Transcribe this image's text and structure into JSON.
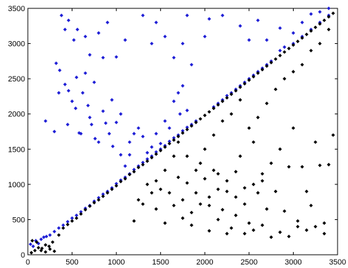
{
  "chart_data": {
    "type": "scatter",
    "title": "",
    "xlabel": "",
    "ylabel": "",
    "xlim": [
      0,
      3500
    ],
    "ylim": [
      0,
      3500
    ],
    "xticks": [
      0,
      500,
      1000,
      1500,
      2000,
      2500,
      3000,
      3500
    ],
    "yticks": [
      0,
      500,
      1000,
      1500,
      2000,
      2500,
      3000,
      3500
    ],
    "grid": false,
    "colors": {
      "upper": "#1f1fd6",
      "lower": "#000000"
    },
    "series": [
      {
        "color": "#1f1fd6",
        "marker": "diamond",
        "points": [
          [
            30,
            150
          ],
          [
            60,
            120
          ],
          [
            90,
            200
          ],
          [
            120,
            160
          ],
          [
            150,
            220
          ],
          [
            180,
            250
          ],
          [
            210,
            260
          ],
          [
            250,
            280
          ],
          [
            300,
            330
          ],
          [
            350,
            380
          ],
          [
            400,
            420
          ],
          [
            450,
            470
          ],
          [
            500,
            520
          ],
          [
            550,
            560
          ],
          [
            600,
            610
          ],
          [
            650,
            660
          ],
          [
            700,
            700
          ],
          [
            750,
            760
          ],
          [
            800,
            810
          ],
          [
            850,
            860
          ],
          [
            900,
            900
          ],
          [
            950,
            950
          ],
          [
            1000,
            1010
          ],
          [
            1050,
            1060
          ],
          [
            1100,
            1100
          ],
          [
            1150,
            1150
          ],
          [
            1200,
            1210
          ],
          [
            1250,
            1260
          ],
          [
            1300,
            1310
          ],
          [
            1350,
            1360
          ],
          [
            1400,
            1400
          ],
          [
            1450,
            1460
          ],
          [
            1500,
            1500
          ],
          [
            1550,
            1550
          ],
          [
            1600,
            1610
          ],
          [
            1650,
            1660
          ],
          [
            1700,
            1700
          ],
          [
            1750,
            1760
          ],
          [
            1800,
            1810
          ],
          [
            1850,
            1850
          ],
          [
            1900,
            1900
          ],
          [
            2100,
            2100
          ],
          [
            2150,
            2150
          ],
          [
            2200,
            2200
          ],
          [
            2250,
            2260
          ],
          [
            2300,
            2300
          ],
          [
            2350,
            2350
          ],
          [
            2400,
            2400
          ],
          [
            2450,
            2450
          ],
          [
            2500,
            2500
          ],
          [
            2550,
            2550
          ],
          [
            2600,
            2600
          ],
          [
            2650,
            2650
          ],
          [
            2700,
            2700
          ],
          [
            2750,
            2750
          ],
          [
            2850,
            2900
          ],
          [
            2900,
            2950
          ],
          [
            3000,
            3000
          ],
          [
            3100,
            3100
          ],
          [
            3200,
            3200
          ],
          [
            3300,
            3300
          ],
          [
            3400,
            3400
          ],
          [
            320,
            2720
          ],
          [
            360,
            2620
          ],
          [
            420,
            2420
          ],
          [
            460,
            2330
          ],
          [
            500,
            2180
          ],
          [
            540,
            2080
          ],
          [
            580,
            1730
          ],
          [
            600,
            1720
          ],
          [
            620,
            2300
          ],
          [
            680,
            2120
          ],
          [
            700,
            1950
          ],
          [
            720,
            1850
          ],
          [
            760,
            1650
          ],
          [
            800,
            1600
          ],
          [
            850,
            2040
          ],
          [
            880,
            1870
          ],
          [
            920,
            1720
          ],
          [
            960,
            1540
          ],
          [
            1000,
            1880
          ],
          [
            1050,
            1420
          ],
          [
            1100,
            1260
          ],
          [
            1150,
            1420
          ],
          [
            1200,
            1720
          ],
          [
            1250,
            1800
          ],
          [
            1300,
            1680
          ],
          [
            1400,
            1530
          ],
          [
            1450,
            1720
          ],
          [
            1500,
            1580
          ],
          [
            1550,
            1900
          ],
          [
            1600,
            1800
          ],
          [
            1650,
            2180
          ],
          [
            1700,
            2300
          ],
          [
            1720,
            2000
          ],
          [
            1750,
            2400
          ],
          [
            1800,
            2050
          ],
          [
            380,
            3400
          ],
          [
            420,
            3200
          ],
          [
            460,
            3330
          ],
          [
            520,
            3050
          ],
          [
            560,
            3200
          ],
          [
            650,
            3100
          ],
          [
            700,
            2840
          ],
          [
            800,
            3150
          ],
          [
            850,
            2800
          ],
          [
            900,
            3300
          ],
          [
            1000,
            2810
          ],
          [
            1100,
            3050
          ],
          [
            1300,
            3400
          ],
          [
            1400,
            3000
          ],
          [
            1450,
            3300
          ],
          [
            1550,
            3100
          ],
          [
            1650,
            2800
          ],
          [
            1750,
            3000
          ],
          [
            1800,
            3400
          ],
          [
            1850,
            2700
          ],
          [
            2000,
            3100
          ],
          [
            2050,
            3350
          ],
          [
            2200,
            3400
          ],
          [
            2400,
            3250
          ],
          [
            2500,
            3050
          ],
          [
            2600,
            3330
          ],
          [
            2700,
            3050
          ],
          [
            2850,
            3220
          ],
          [
            3000,
            3150
          ],
          [
            3100,
            3300
          ],
          [
            3200,
            3420
          ],
          [
            3300,
            3450
          ],
          [
            3400,
            3500
          ],
          [
            200,
            1900
          ],
          [
            300,
            1750
          ],
          [
            350,
            2300
          ],
          [
            450,
            1850
          ],
          [
            550,
            2520
          ],
          [
            650,
            2580
          ],
          [
            750,
            2450
          ],
          [
            950,
            2200
          ],
          [
            1050,
            2000
          ],
          [
            1150,
            1600
          ],
          [
            1350,
            1450
          ]
        ]
      },
      {
        "color": "#000000",
        "marker": "diamond",
        "points": [
          [
            40,
            30
          ],
          [
            80,
            60
          ],
          [
            120,
            100
          ],
          [
            160,
            90
          ],
          [
            200,
            140
          ],
          [
            240,
            120
          ],
          [
            280,
            180
          ],
          [
            50,
            200
          ],
          [
            100,
            180
          ],
          [
            150,
            60
          ],
          [
            200,
            40
          ],
          [
            250,
            80
          ],
          [
            300,
            50
          ],
          [
            350,
            280
          ],
          [
            400,
            380
          ],
          [
            450,
            430
          ],
          [
            500,
            480
          ],
          [
            550,
            520
          ],
          [
            600,
            580
          ],
          [
            650,
            640
          ],
          [
            700,
            690
          ],
          [
            750,
            740
          ],
          [
            800,
            780
          ],
          [
            850,
            830
          ],
          [
            900,
            880
          ],
          [
            950,
            930
          ],
          [
            1000,
            980
          ],
          [
            1050,
            1040
          ],
          [
            1100,
            1080
          ],
          [
            1150,
            1140
          ],
          [
            1200,
            1180
          ],
          [
            1250,
            1240
          ],
          [
            1300,
            1280
          ],
          [
            1350,
            1330
          ],
          [
            1400,
            1380
          ],
          [
            1450,
            1430
          ],
          [
            1500,
            1480
          ],
          [
            1550,
            1530
          ],
          [
            1600,
            1580
          ],
          [
            1650,
            1630
          ],
          [
            1700,
            1680
          ],
          [
            1750,
            1730
          ],
          [
            1800,
            1780
          ],
          [
            1850,
            1830
          ],
          [
            1900,
            1880
          ],
          [
            1950,
            1930
          ],
          [
            2000,
            1980
          ],
          [
            2050,
            2030
          ],
          [
            2100,
            2080
          ],
          [
            2150,
            2130
          ],
          [
            2200,
            2180
          ],
          [
            2250,
            2230
          ],
          [
            2300,
            2280
          ],
          [
            2350,
            2330
          ],
          [
            2400,
            2380
          ],
          [
            2450,
            2430
          ],
          [
            2500,
            2480
          ],
          [
            2550,
            2530
          ],
          [
            2600,
            2580
          ],
          [
            2650,
            2630
          ],
          [
            2700,
            2680
          ],
          [
            2750,
            2730
          ],
          [
            2800,
            2780
          ],
          [
            2850,
            2830
          ],
          [
            2900,
            2880
          ],
          [
            2950,
            2930
          ],
          [
            3000,
            2980
          ],
          [
            3050,
            3030
          ],
          [
            3100,
            3080
          ],
          [
            3150,
            3130
          ],
          [
            3200,
            3180
          ],
          [
            3250,
            3230
          ],
          [
            3300,
            3280
          ],
          [
            3350,
            3330
          ],
          [
            3400,
            3380
          ],
          [
            3450,
            3430
          ],
          [
            1200,
            480
          ],
          [
            1300,
            720
          ],
          [
            1350,
            1000
          ],
          [
            1400,
            880
          ],
          [
            1450,
            1050
          ],
          [
            1500,
            930
          ],
          [
            1550,
            1200
          ],
          [
            1600,
            880
          ],
          [
            1650,
            1400
          ],
          [
            1700,
            1100
          ],
          [
            1750,
            780
          ],
          [
            1800,
            1020
          ],
          [
            1850,
            600
          ],
          [
            1900,
            880
          ],
          [
            1950,
            1300
          ],
          [
            2000,
            1080
          ],
          [
            2050,
            820
          ],
          [
            2100,
            1200
          ],
          [
            2150,
            500
          ],
          [
            2200,
            640
          ],
          [
            2250,
            900
          ],
          [
            2300,
            380
          ],
          [
            2350,
            560
          ],
          [
            2400,
            1400
          ],
          [
            2450,
            720
          ],
          [
            2500,
            450
          ],
          [
            2550,
            1600
          ],
          [
            2600,
            880
          ],
          [
            2650,
            1050
          ],
          [
            2700,
            650
          ],
          [
            2750,
            1300
          ],
          [
            2800,
            900
          ],
          [
            2850,
            1500
          ],
          [
            2900,
            620
          ],
          [
            2950,
            1250
          ],
          [
            3000,
            1800
          ],
          [
            3050,
            400
          ],
          [
            3100,
            1250
          ],
          [
            3150,
            900
          ],
          [
            3200,
            700
          ],
          [
            3250,
            1600
          ],
          [
            3300,
            1270
          ],
          [
            3350,
            300
          ],
          [
            3400,
            1280
          ],
          [
            3450,
            1700
          ],
          [
            1250,
            780
          ],
          [
            1450,
            650
          ],
          [
            1550,
            450
          ],
          [
            1650,
            700
          ],
          [
            1750,
            520
          ],
          [
            1850,
            420
          ],
          [
            1950,
            720
          ],
          [
            2050,
            340
          ],
          [
            2150,
            930
          ],
          [
            2250,
            300
          ],
          [
            2350,
            820
          ],
          [
            2450,
            300
          ],
          [
            2550,
            350
          ],
          [
            2650,
            420
          ],
          [
            2750,
            250
          ],
          [
            2850,
            320
          ],
          [
            2950,
            260
          ],
          [
            3050,
            480
          ],
          [
            3150,
            350
          ],
          [
            3250,
            400
          ],
          [
            3350,
            450
          ],
          [
            2600,
            1950
          ],
          [
            2700,
            2150
          ],
          [
            2800,
            2350
          ],
          [
            2900,
            2500
          ],
          [
            3000,
            2600
          ],
          [
            3100,
            2700
          ],
          [
            3200,
            2900
          ],
          [
            3300,
            3000
          ],
          [
            3400,
            3200
          ],
          [
            1700,
            1600
          ],
          [
            1800,
            1400
          ],
          [
            1900,
            1200
          ],
          [
            2000,
            1500
          ],
          [
            2100,
            1700
          ],
          [
            2200,
            1900
          ],
          [
            2300,
            2000
          ],
          [
            2400,
            2200
          ],
          [
            2500,
            1800
          ],
          [
            2050,
            700
          ],
          [
            2150,
            1150
          ],
          [
            2250,
            1050
          ],
          [
            2350,
            1180
          ],
          [
            2450,
            950
          ],
          [
            2550,
            1000
          ],
          [
            2650,
            1150
          ]
        ]
      }
    ]
  }
}
